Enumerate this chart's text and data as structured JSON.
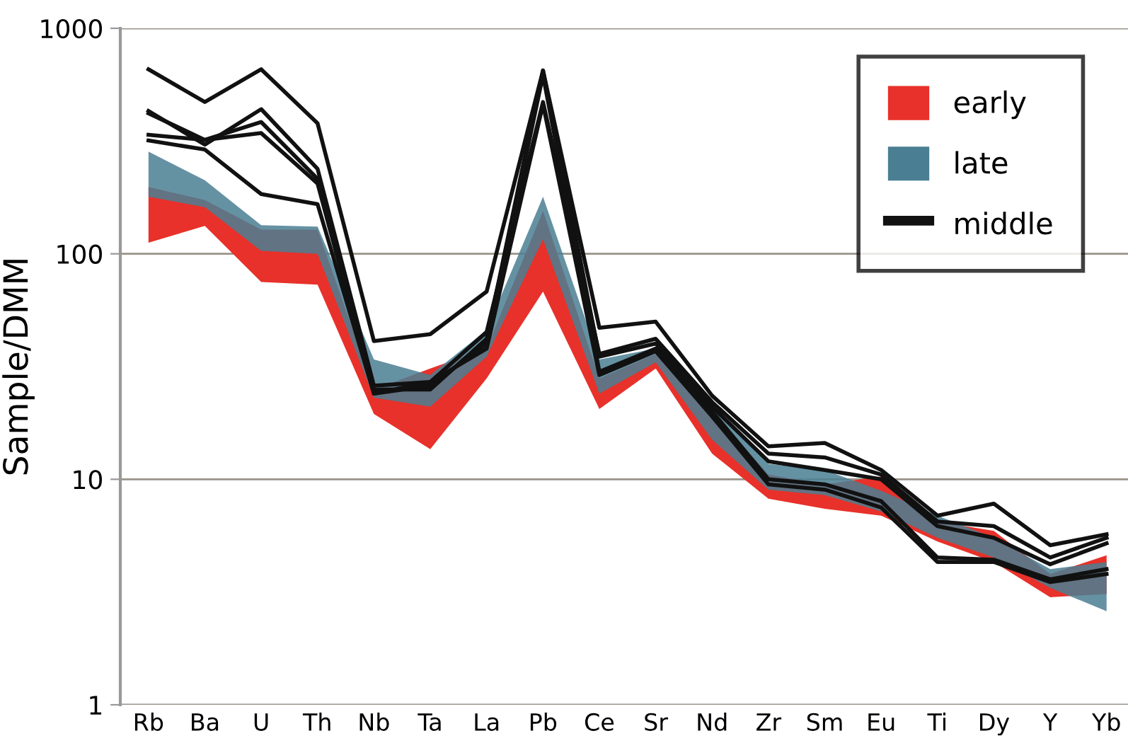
{
  "chart_data": {
    "type": "line",
    "ylabel": "Sample/DMM",
    "categories": [
      "Rb",
      "Ba",
      "U",
      "Th",
      "Nb",
      "Ta",
      "La",
      "Pb",
      "Ce",
      "Sr",
      "Nd",
      "Zr",
      "Sm",
      "Eu",
      "Ti",
      "Dy",
      "Y",
      "Yb"
    ],
    "series": [
      {
        "name": "early",
        "type": "area",
        "color": "#e8312a",
        "values": [
          null,
          null,
          null,
          null,
          null,
          null,
          null,
          null,
          null,
          null,
          null,
          null,
          null,
          null,
          null,
          null,
          null,
          null
        ],
        "upper": [
          198,
          173,
          128,
          128,
          25,
          31,
          38,
          155,
          28,
          36,
          20,
          10.5,
          9.5,
          10.3,
          6.5,
          5.9,
          3.8,
          4.6
        ],
        "lower": [
          112,
          133,
          75,
          73,
          19.5,
          13.6,
          28,
          68,
          20.5,
          31,
          13,
          8.2,
          7.4,
          6.9,
          5.3,
          4.3,
          3.0,
          3.1
        ]
      },
      {
        "name": "late",
        "type": "area",
        "color": "#4a7f93",
        "values": [
          null,
          null,
          null,
          null,
          null,
          null,
          null,
          null,
          null,
          null,
          null,
          null,
          null,
          null,
          null,
          null,
          null,
          null
        ],
        "upper": [
          284,
          212,
          134,
          132,
          34,
          29,
          46,
          179,
          34,
          38,
          21,
          11.7,
          11,
          8.9,
          6.9,
          5.5,
          4.0,
          4.3
        ],
        "lower": [
          179,
          161,
          103,
          100,
          23,
          21,
          35,
          116,
          24,
          33,
          15,
          9,
          8.5,
          7.2,
          5.5,
          4.5,
          3.3,
          2.6
        ]
      },
      {
        "name": "middle",
        "color": "#111111",
        "values": [
          658,
          471,
          658,
          379,
          41,
          44,
          68,
          650,
          47,
          50,
          23.5,
          14,
          14.5,
          11,
          6.9,
          7.8,
          5.1,
          5.7
        ]
      },
      {
        "color": "#111111",
        "values": [
          430,
          305,
          438,
          238,
          26,
          27,
          45,
          471,
          36,
          42,
          22,
          13,
          12.5,
          10.5,
          6.5,
          6.2,
          4.5,
          5.5
        ]
      },
      {
        "color": "#111111",
        "values": [
          420,
          320,
          384,
          215,
          25,
          25,
          42,
          650,
          35,
          40,
          21,
          12,
          11,
          10,
          6.2,
          5.5,
          4.2,
          5.2
        ]
      },
      {
        "color": "#111111",
        "values": [
          337,
          320,
          343,
          205,
          24,
          26,
          40,
          620,
          30,
          38,
          20,
          10,
          9.5,
          8,
          4.5,
          4.4,
          3.6,
          4.0
        ]
      },
      {
        "color": "#111111",
        "values": [
          318,
          290,
          184,
          166,
          24,
          27,
          38,
          460,
          29,
          37,
          19,
          9.5,
          9,
          7.5,
          4.3,
          4.3,
          3.5,
          3.8
        ]
      }
    ],
    "log": true,
    "ylim": [
      1,
      1000
    ],
    "yticks": [
      1,
      10,
      100,
      1000
    ],
    "grid": "y",
    "legend": "top right"
  }
}
